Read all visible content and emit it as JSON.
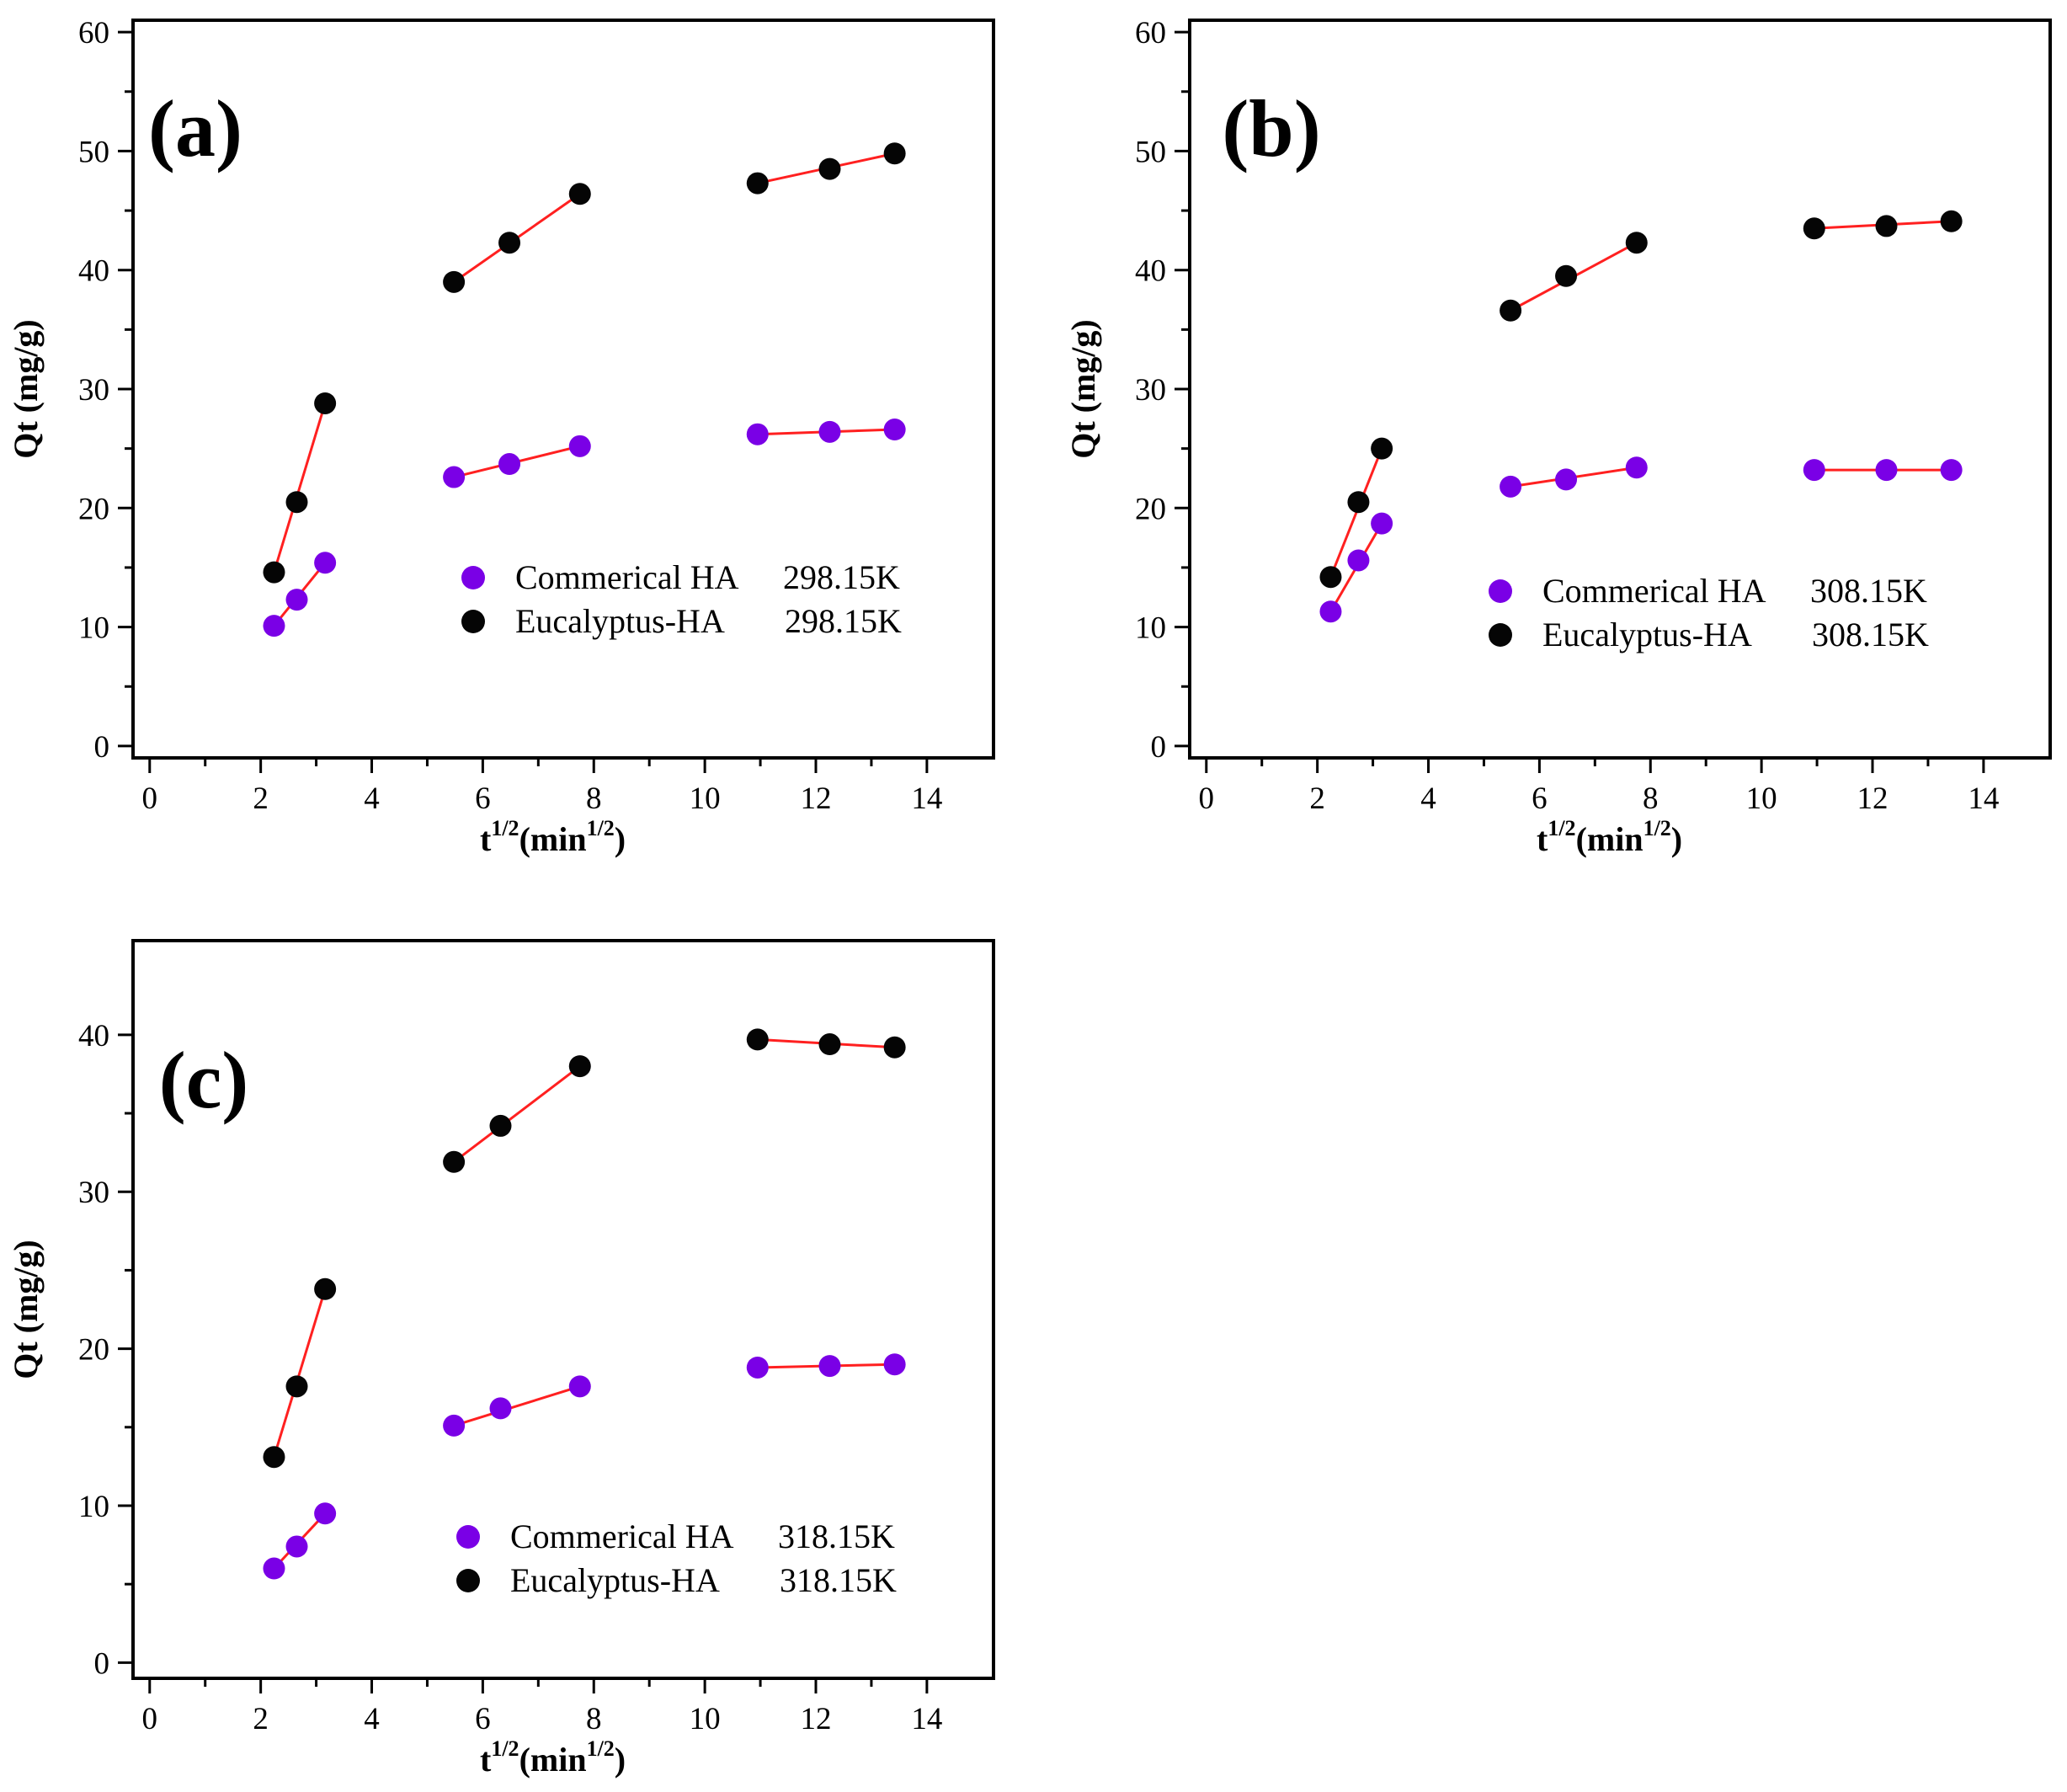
{
  "colors": {
    "commercial": "#7a00e6",
    "eucalyptus": "#050505",
    "fit_line": "#ff2020",
    "axis": "#000000"
  },
  "xlabel": {
    "base": "t",
    "sup1": "1/2",
    "unit_open": "(min",
    "sup2": "1/2",
    "unit_close": ")"
  },
  "chart_data": [
    {
      "type": "scatter",
      "panel_label": "(a)",
      "ylabel": "Qt (mg/g)",
      "xlim": [
        -0.3,
        15.2
      ],
      "ylim": [
        -1,
        61
      ],
      "x_ticks": [
        0,
        2,
        4,
        6,
        8,
        10,
        12,
        14
      ],
      "x_tick_labels": [
        "0",
        "2",
        "4",
        "6",
        "8",
        "10",
        "12",
        "14"
      ],
      "y_ticks": [
        0,
        10,
        20,
        30,
        40,
        50,
        60
      ],
      "y_tick_labels": [
        "0",
        "10",
        "20",
        "30",
        "40",
        "50",
        "60"
      ],
      "legend": [
        {
          "series": 0,
          "name": "Commerical HA",
          "temp": "298.15K"
        },
        {
          "series": 1,
          "name": "Eucalyptus-HA",
          "temp": "298.15K"
        }
      ],
      "series": [
        {
          "name": "Commerical HA 298.15K",
          "color_key": "commercial",
          "segments": [
            {
              "x": [
                2.24,
                2.65,
                3.16
              ],
              "y": [
                10.1,
                12.3,
                15.4
              ]
            },
            {
              "x": [
                5.48,
                6.48,
                7.75
              ],
              "y": [
                22.6,
                23.7,
                25.2
              ]
            },
            {
              "x": [
                10.95,
                12.25,
                13.42
              ],
              "y": [
                26.2,
                26.4,
                26.6
              ]
            }
          ]
        },
        {
          "name": "Eucalyptus-HA 298.15K",
          "color_key": "eucalyptus",
          "segments": [
            {
              "x": [
                2.24,
                2.65,
                3.16
              ],
              "y": [
                14.6,
                20.5,
                28.8
              ]
            },
            {
              "x": [
                5.48,
                6.48,
                7.75
              ],
              "y": [
                39.0,
                42.3,
                46.4
              ]
            },
            {
              "x": [
                10.95,
                12.25,
                13.42
              ],
              "y": [
                47.3,
                48.5,
                49.8
              ]
            }
          ]
        }
      ]
    },
    {
      "type": "scatter",
      "panel_label": "(b)",
      "ylabel": "Qt (mg/g)",
      "xlim": [
        -0.3,
        15.2
      ],
      "ylim": [
        -1,
        61
      ],
      "x_ticks": [
        0,
        2,
        4,
        6,
        8,
        10,
        12,
        14
      ],
      "x_tick_labels": [
        "0",
        "2",
        "4",
        "6",
        "8",
        "10",
        "12",
        "14"
      ],
      "y_ticks": [
        0,
        10,
        20,
        30,
        40,
        50,
        60
      ],
      "y_tick_labels": [
        "0",
        "10",
        "20",
        "30",
        "40",
        "50",
        "60"
      ],
      "legend": [
        {
          "series": 0,
          "name": "Commerical HA",
          "temp": "308.15K"
        },
        {
          "series": 1,
          "name": "Eucalyptus-HA",
          "temp": "308.15K"
        }
      ],
      "series": [
        {
          "name": "Commerical HA 308.15K",
          "color_key": "commercial",
          "segments": [
            {
              "x": [
                2.24,
                2.74,
                3.16
              ],
              "y": [
                11.3,
                15.6,
                18.7
              ]
            },
            {
              "x": [
                5.48,
                6.48,
                7.75
              ],
              "y": [
                21.8,
                22.4,
                23.4
              ]
            },
            {
              "x": [
                10.95,
                12.25,
                13.42
              ],
              "y": [
                23.2,
                23.2,
                23.2
              ]
            }
          ]
        },
        {
          "name": "Eucalyptus-HA 308.15K",
          "color_key": "eucalyptus",
          "segments": [
            {
              "x": [
                2.24,
                2.74,
                3.16
              ],
              "y": [
                14.2,
                20.5,
                25.0
              ]
            },
            {
              "x": [
                5.48,
                6.48,
                7.75
              ],
              "y": [
                36.6,
                39.5,
                42.3
              ]
            },
            {
              "x": [
                10.95,
                12.25,
                13.42
              ],
              "y": [
                43.5,
                43.7,
                44.1
              ]
            }
          ]
        }
      ]
    },
    {
      "type": "scatter",
      "panel_label": "(c)",
      "ylabel": "Qt (mg/g)",
      "xlim": [
        -0.3,
        15.2
      ],
      "ylim": [
        -1,
        46
      ],
      "x_ticks": [
        0,
        2,
        4,
        6,
        8,
        10,
        12,
        14
      ],
      "x_tick_labels": [
        "0",
        "2",
        "4",
        "6",
        "8",
        "10",
        "12",
        "14"
      ],
      "y_ticks": [
        0,
        10,
        20,
        30,
        40
      ],
      "y_tick_labels": [
        "0",
        "10",
        "20",
        "30",
        "40"
      ],
      "legend": [
        {
          "series": 0,
          "name": "Commerical HA",
          "temp": "318.15K"
        },
        {
          "series": 1,
          "name": "Eucalyptus-HA",
          "temp": "318.15K"
        }
      ],
      "series": [
        {
          "name": "Commerical HA 318.15K",
          "color_key": "commercial",
          "segments": [
            {
              "x": [
                2.24,
                2.65,
                3.16
              ],
              "y": [
                6.0,
                7.4,
                9.5
              ]
            },
            {
              "x": [
                5.48,
                6.32,
                7.75
              ],
              "y": [
                15.1,
                16.2,
                17.6
              ]
            },
            {
              "x": [
                10.95,
                12.25,
                13.42
              ],
              "y": [
                18.8,
                18.9,
                19.0
              ]
            }
          ]
        },
        {
          "name": "Eucalyptus-HA 318.15K",
          "color_key": "eucalyptus",
          "segments": [
            {
              "x": [
                2.24,
                2.65,
                3.16
              ],
              "y": [
                13.1,
                17.6,
                23.8
              ]
            },
            {
              "x": [
                5.48,
                6.32,
                7.75
              ],
              "y": [
                31.9,
                34.2,
                38.0
              ]
            },
            {
              "x": [
                10.95,
                12.25,
                13.42
              ],
              "y": [
                39.7,
                39.4,
                39.2
              ]
            }
          ]
        }
      ]
    }
  ]
}
